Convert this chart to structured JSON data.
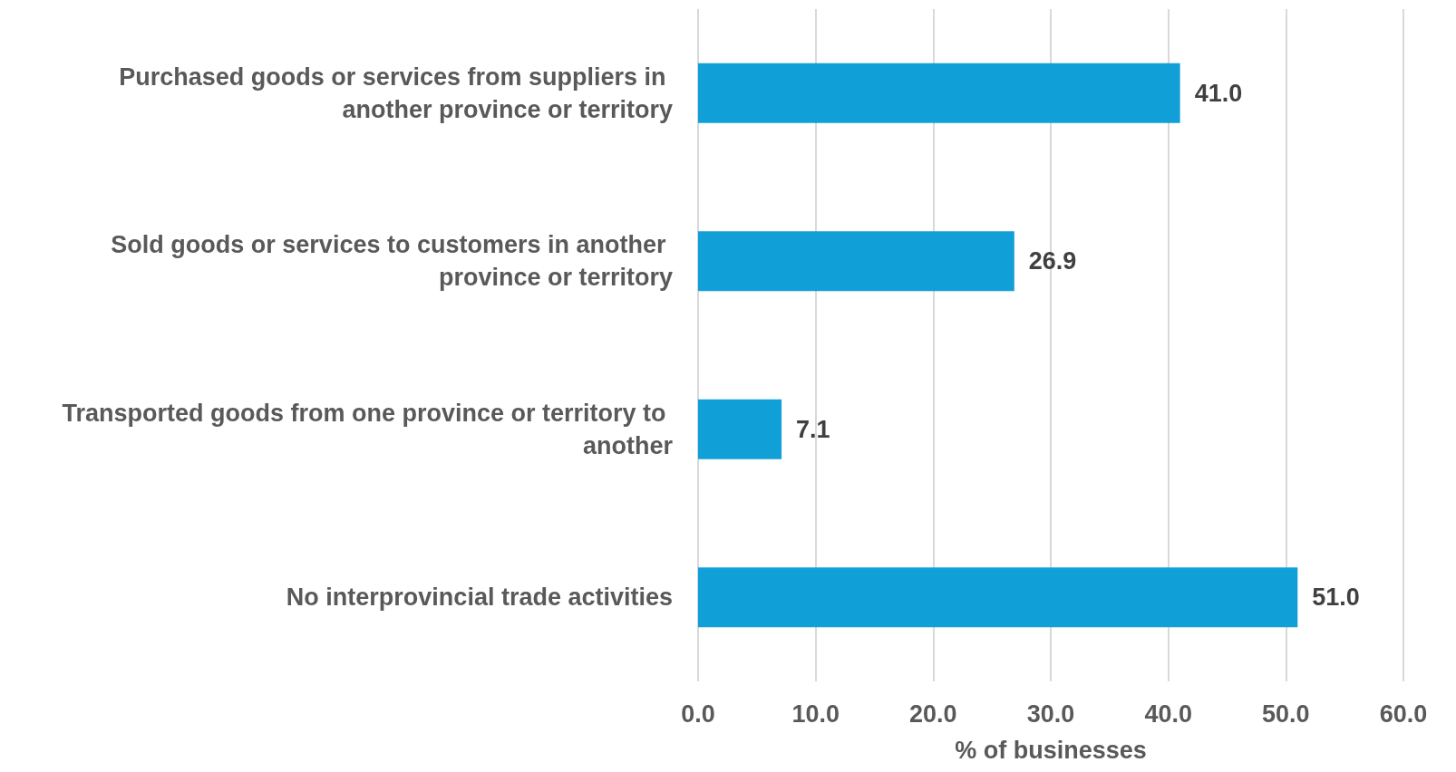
{
  "chart_data": {
    "type": "bar",
    "orientation": "horizontal",
    "xlabel": "% of businesses",
    "categories": [
      "Purchased goods or services from suppliers in another province or territory",
      "Sold goods or services to customers in another province or territory",
      "Transported goods from one province or territory to another",
      "No interprovincial trade activities"
    ],
    "values": [
      41.0,
      26.9,
      7.1,
      51.0
    ],
    "color": "#119fd7",
    "data_labels": true,
    "value_labels": [
      "41.0",
      "26.9",
      "7.1",
      "51.0"
    ],
    "xlim": [
      0,
      60
    ],
    "xticks": [
      {
        "value": 0,
        "label": "0.0"
      },
      {
        "value": 10,
        "label": "10.0"
      },
      {
        "value": 20,
        "label": "20.0"
      },
      {
        "value": 30,
        "label": "30.0"
      },
      {
        "value": 40,
        "label": "40.0"
      },
      {
        "value": 50,
        "label": "50.0"
      },
      {
        "value": 60,
        "label": "60.0"
      }
    ],
    "grid": "x"
  }
}
